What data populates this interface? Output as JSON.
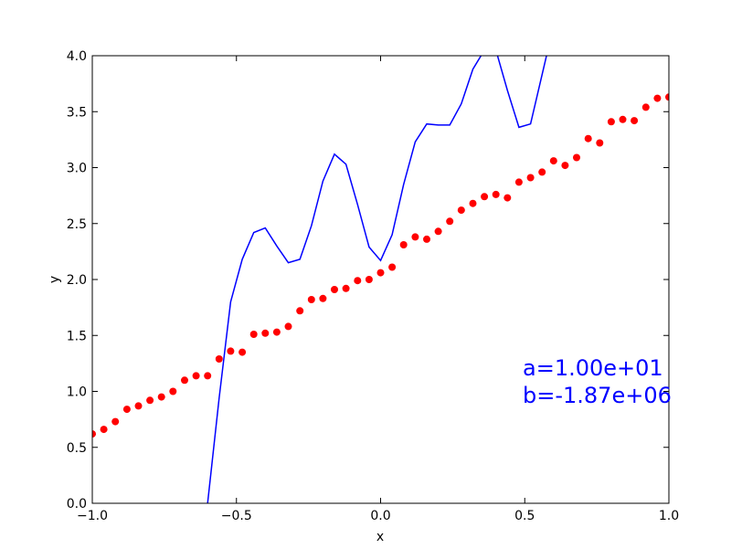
{
  "chart_data": {
    "type": "line",
    "title": "",
    "xlabel": "x",
    "ylabel": "y",
    "xlim": [
      -1.0,
      1.0
    ],
    "ylim": [
      0.0,
      4.0
    ],
    "x_ticks": [
      "−1.0",
      "−0.5",
      "0.0",
      "0.5",
      "1.0"
    ],
    "x_tick_values": [
      -1.0,
      -0.5,
      0.0,
      0.5,
      1.0
    ],
    "y_ticks": [
      "0.0",
      "0.5",
      "1.0",
      "1.5",
      "2.0",
      "2.5",
      "3.0",
      "3.5",
      "4.0"
    ],
    "y_tick_values": [
      0.0,
      0.5,
      1.0,
      1.5,
      2.0,
      2.5,
      3.0,
      3.5,
      4.0
    ],
    "grid": false,
    "series": [
      {
        "style": "points",
        "color": "#ff0000",
        "x": [
          -1.0,
          -0.96,
          -0.92,
          -0.88,
          -0.84,
          -0.8,
          -0.76,
          -0.72,
          -0.68,
          -0.64,
          -0.6,
          -0.56,
          -0.52,
          -0.48,
          -0.44,
          -0.4,
          -0.36,
          -0.32,
          -0.28,
          -0.24,
          -0.2,
          -0.16,
          -0.12,
          -0.08,
          -0.04,
          0.0,
          0.04,
          0.08,
          0.12,
          0.16,
          0.2,
          0.24,
          0.28,
          0.32,
          0.36,
          0.4,
          0.44,
          0.48,
          0.52,
          0.56,
          0.6,
          0.64,
          0.68,
          0.72,
          0.76,
          0.8,
          0.84,
          0.88,
          0.92,
          0.96,
          1.0
        ],
        "y": [
          0.62,
          0.66,
          0.73,
          0.84,
          0.87,
          0.92,
          0.95,
          1.0,
          1.1,
          1.14,
          1.14,
          1.29,
          1.36,
          1.35,
          1.51,
          1.52,
          1.53,
          1.58,
          1.72,
          1.82,
          1.83,
          1.91,
          1.92,
          1.99,
          2.0,
          2.06,
          2.11,
          2.31,
          2.38,
          2.36,
          2.43,
          2.52,
          2.62,
          2.68,
          2.74,
          2.76,
          2.73,
          2.87,
          2.91,
          2.96,
          3.06,
          3.02,
          3.09,
          3.26,
          3.22,
          3.41,
          3.43,
          3.42,
          3.54,
          3.62,
          3.63
        ]
      },
      {
        "style": "line",
        "color": "#0000ff",
        "x": [
          -0.6,
          -0.56,
          -0.52,
          -0.48,
          -0.44,
          -0.4,
          -0.36,
          -0.32,
          -0.28,
          -0.24,
          -0.2,
          -0.16,
          -0.12,
          -0.08,
          -0.04,
          0.0,
          0.04,
          0.08,
          0.12,
          0.16,
          0.2,
          0.24,
          0.28,
          0.32,
          0.36,
          0.4,
          0.44,
          0.48,
          0.52,
          0.56,
          0.58
        ],
        "y": [
          0.0,
          0.94,
          1.8,
          2.18,
          2.42,
          2.46,
          2.3,
          2.15,
          2.18,
          2.48,
          2.88,
          3.12,
          3.03,
          2.67,
          2.29,
          2.17,
          2.4,
          2.85,
          3.23,
          3.39,
          3.38,
          3.38,
          3.57,
          3.88,
          4.05,
          4.05,
          3.69,
          3.36,
          3.39,
          3.83,
          4.05
        ]
      }
    ],
    "annotations": [
      "a=1.00e+01",
      "b=-1.87e+06"
    ],
    "annotation_color": "#0000ff"
  }
}
